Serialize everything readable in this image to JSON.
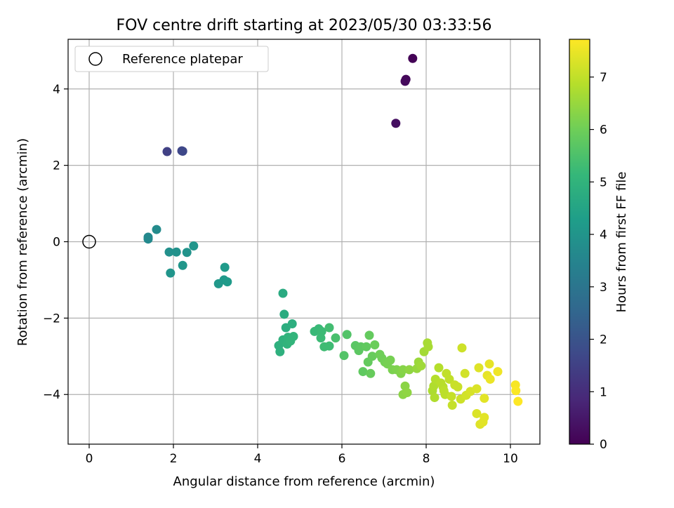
{
  "chart_data": {
    "type": "scatter",
    "title": "FOV centre drift starting at 2023/05/30 03:33:56",
    "xlabel": "Angular distance from reference (arcmin)",
    "ylabel": "Rotation from reference (arcmin)",
    "xlim": [
      -0.5,
      10.7
    ],
    "ylim": [
      -5.3,
      5.3
    ],
    "xticks": [
      0,
      2,
      4,
      6,
      8,
      10
    ],
    "yticks": [
      -4,
      -2,
      0,
      2,
      4
    ],
    "xtick_labels": [
      "0",
      "2",
      "4",
      "6",
      "8",
      "10"
    ],
    "ytick_labels": [
      "−4",
      "−2",
      "0",
      "2",
      "4"
    ],
    "grid": true,
    "legend": {
      "placement": "top-left",
      "entries": [
        "Reference platepar"
      ]
    },
    "reference_point": {
      "x": 0,
      "y": 0
    },
    "colorbar": {
      "label": "Hours from first FF file",
      "range": [
        0,
        7.72
      ],
      "ticks": [
        0,
        1,
        2,
        3,
        4,
        5,
        6,
        7
      ],
      "tick_labels": [
        "0",
        "1",
        "2",
        "3",
        "4",
        "5",
        "6",
        "7"
      ],
      "colormap": "viridis"
    },
    "points": [
      {
        "x": 7.68,
        "y": 4.8,
        "c": 0.05
      },
      {
        "x": 7.52,
        "y": 4.25,
        "c": 0.15
      },
      {
        "x": 7.5,
        "y": 4.2,
        "c": 0.2
      },
      {
        "x": 7.28,
        "y": 3.1,
        "c": 0.3
      },
      {
        "x": 1.85,
        "y": 2.36,
        "c": 1.5
      },
      {
        "x": 2.2,
        "y": 2.38,
        "c": 1.6
      },
      {
        "x": 2.22,
        "y": 2.37,
        "c": 1.7
      },
      {
        "x": 1.4,
        "y": 0.12,
        "c": 3.6
      },
      {
        "x": 1.4,
        "y": 0.07,
        "c": 3.65
      },
      {
        "x": 1.6,
        "y": 0.32,
        "c": 3.7
      },
      {
        "x": 1.9,
        "y": -0.27,
        "c": 3.85
      },
      {
        "x": 2.07,
        "y": -0.27,
        "c": 3.9
      },
      {
        "x": 2.32,
        "y": -0.28,
        "c": 3.95
      },
      {
        "x": 2.48,
        "y": -0.11,
        "c": 4.0
      },
      {
        "x": 2.22,
        "y": -0.62,
        "c": 4.05
      },
      {
        "x": 1.93,
        "y": -0.82,
        "c": 4.0
      },
      {
        "x": 3.07,
        "y": -1.1,
        "c": 4.1
      },
      {
        "x": 3.2,
        "y": -1.0,
        "c": 4.15
      },
      {
        "x": 3.28,
        "y": -1.05,
        "c": 4.2
      },
      {
        "x": 3.22,
        "y": -0.67,
        "c": 4.2
      },
      {
        "x": 4.6,
        "y": -1.35,
        "c": 4.7
      },
      {
        "x": 4.63,
        "y": -1.9,
        "c": 4.75
      },
      {
        "x": 4.67,
        "y": -2.25,
        "c": 4.8
      },
      {
        "x": 4.82,
        "y": -2.15,
        "c": 4.85
      },
      {
        "x": 4.5,
        "y": -2.72,
        "c": 4.9
      },
      {
        "x": 4.53,
        "y": -2.88,
        "c": 4.9
      },
      {
        "x": 4.6,
        "y": -2.57,
        "c": 4.95
      },
      {
        "x": 4.72,
        "y": -2.5,
        "c": 5.0
      },
      {
        "x": 4.7,
        "y": -2.68,
        "c": 5.0
      },
      {
        "x": 4.78,
        "y": -2.6,
        "c": 5.05
      },
      {
        "x": 4.85,
        "y": -2.48,
        "c": 5.05
      },
      {
        "x": 5.35,
        "y": -2.35,
        "c": 5.2
      },
      {
        "x": 5.45,
        "y": -2.28,
        "c": 5.2
      },
      {
        "x": 5.52,
        "y": -2.35,
        "c": 5.25
      },
      {
        "x": 5.5,
        "y": -2.52,
        "c": 5.25
      },
      {
        "x": 5.58,
        "y": -2.75,
        "c": 5.3
      },
      {
        "x": 5.7,
        "y": -2.73,
        "c": 5.3
      },
      {
        "x": 5.7,
        "y": -2.25,
        "c": 5.35
      },
      {
        "x": 5.85,
        "y": -2.52,
        "c": 5.45
      },
      {
        "x": 6.05,
        "y": -2.98,
        "c": 5.6
      },
      {
        "x": 6.12,
        "y": -2.43,
        "c": 5.6
      },
      {
        "x": 6.32,
        "y": -2.72,
        "c": 5.7
      },
      {
        "x": 6.4,
        "y": -2.85,
        "c": 5.75
      },
      {
        "x": 6.45,
        "y": -2.75,
        "c": 5.75
      },
      {
        "x": 6.5,
        "y": -3.4,
        "c": 5.8
      },
      {
        "x": 6.58,
        "y": -2.75,
        "c": 5.8
      },
      {
        "x": 6.65,
        "y": -2.45,
        "c": 5.85
      },
      {
        "x": 6.62,
        "y": -3.15,
        "c": 5.85
      },
      {
        "x": 6.68,
        "y": -3.45,
        "c": 5.9
      },
      {
        "x": 6.72,
        "y": -3.0,
        "c": 5.9
      },
      {
        "x": 6.78,
        "y": -2.7,
        "c": 5.95
      },
      {
        "x": 6.9,
        "y": -2.95,
        "c": 6.0
      },
      {
        "x": 6.95,
        "y": -3.05,
        "c": 6.0
      },
      {
        "x": 7.02,
        "y": -3.15,
        "c": 6.05
      },
      {
        "x": 7.08,
        "y": -3.2,
        "c": 6.1
      },
      {
        "x": 7.15,
        "y": -3.1,
        "c": 6.1
      },
      {
        "x": 7.2,
        "y": -3.35,
        "c": 6.15
      },
      {
        "x": 7.3,
        "y": -3.35,
        "c": 6.2
      },
      {
        "x": 7.4,
        "y": -3.45,
        "c": 6.25
      },
      {
        "x": 7.45,
        "y": -3.35,
        "c": 6.3
      },
      {
        "x": 7.5,
        "y": -3.78,
        "c": 6.35
      },
      {
        "x": 7.45,
        "y": -4.0,
        "c": 6.35
      },
      {
        "x": 7.55,
        "y": -3.95,
        "c": 6.4
      },
      {
        "x": 7.6,
        "y": -3.35,
        "c": 6.4
      },
      {
        "x": 7.78,
        "y": -3.32,
        "c": 6.5
      },
      {
        "x": 7.82,
        "y": -3.15,
        "c": 6.55
      },
      {
        "x": 7.88,
        "y": -3.25,
        "c": 6.6
      },
      {
        "x": 7.95,
        "y": -2.88,
        "c": 6.65
      },
      {
        "x": 8.05,
        "y": -2.75,
        "c": 6.7
      },
      {
        "x": 8.03,
        "y": -2.65,
        "c": 6.7
      },
      {
        "x": 8.15,
        "y": -3.9,
        "c": 6.75
      },
      {
        "x": 8.18,
        "y": -3.78,
        "c": 6.8
      },
      {
        "x": 8.2,
        "y": -4.08,
        "c": 6.8
      },
      {
        "x": 8.22,
        "y": -3.6,
        "c": 6.85
      },
      {
        "x": 8.3,
        "y": -3.3,
        "c": 6.85
      },
      {
        "x": 8.35,
        "y": -3.7,
        "c": 6.9
      },
      {
        "x": 8.4,
        "y": -3.8,
        "c": 6.9
      },
      {
        "x": 8.42,
        "y": -3.9,
        "c": 6.95
      },
      {
        "x": 8.45,
        "y": -4.0,
        "c": 6.95
      },
      {
        "x": 8.48,
        "y": -3.45,
        "c": 7.0
      },
      {
        "x": 8.55,
        "y": -3.6,
        "c": 7.0
      },
      {
        "x": 8.6,
        "y": -4.05,
        "c": 7.05
      },
      {
        "x": 8.62,
        "y": -4.28,
        "c": 7.05
      },
      {
        "x": 8.68,
        "y": -3.75,
        "c": 7.1
      },
      {
        "x": 8.75,
        "y": -3.8,
        "c": 7.1
      },
      {
        "x": 8.82,
        "y": -4.12,
        "c": 7.15
      },
      {
        "x": 8.85,
        "y": -2.78,
        "c": 7.15
      },
      {
        "x": 8.92,
        "y": -3.45,
        "c": 7.2
      },
      {
        "x": 8.95,
        "y": -4.02,
        "c": 7.2
      },
      {
        "x": 9.05,
        "y": -3.92,
        "c": 7.25
      },
      {
        "x": 9.2,
        "y": -3.85,
        "c": 7.3
      },
      {
        "x": 9.2,
        "y": -4.5,
        "c": 7.3
      },
      {
        "x": 9.25,
        "y": -3.3,
        "c": 7.35
      },
      {
        "x": 9.28,
        "y": -4.78,
        "c": 7.35
      },
      {
        "x": 9.35,
        "y": -4.72,
        "c": 7.4
      },
      {
        "x": 9.38,
        "y": -4.6,
        "c": 7.4
      },
      {
        "x": 9.38,
        "y": -4.1,
        "c": 7.4
      },
      {
        "x": 9.45,
        "y": -3.5,
        "c": 7.45
      },
      {
        "x": 9.5,
        "y": -3.2,
        "c": 7.45
      },
      {
        "x": 9.52,
        "y": -3.6,
        "c": 7.5
      },
      {
        "x": 9.7,
        "y": -3.4,
        "c": 7.55
      },
      {
        "x": 10.12,
        "y": -3.75,
        "c": 7.65
      },
      {
        "x": 10.13,
        "y": -3.9,
        "c": 7.68
      },
      {
        "x": 10.18,
        "y": -4.18,
        "c": 7.72
      }
    ]
  }
}
